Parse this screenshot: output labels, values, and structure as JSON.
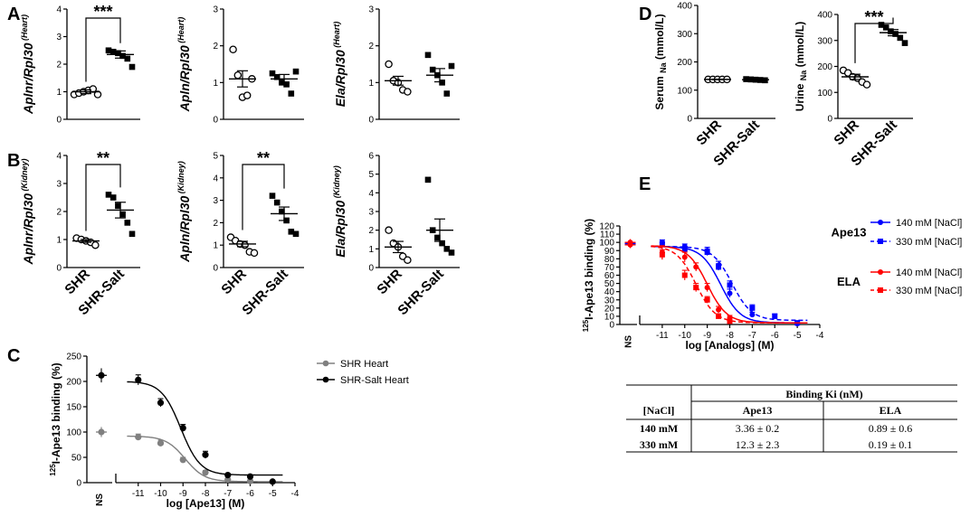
{
  "panels": {
    "A": "A",
    "B": "B",
    "C": "C",
    "D": "D",
    "E": "E"
  },
  "categories": [
    "SHR",
    "SHR-Salt"
  ],
  "chart_data": [
    {
      "id": "A1",
      "type": "scatter",
      "ylabel": "Aplnr/Rpl30",
      "ylabel_sup": "(Heart)",
      "ylim": [
        0,
        4
      ],
      "yticks": [
        "0",
        "1",
        "2",
        "3",
        "4"
      ],
      "sig": "***",
      "groups": [
        {
          "name": "SHR",
          "marker": "open-circle",
          "mean": 1.0,
          "sem": 0.07,
          "points": [
            0.9,
            0.95,
            1.0,
            1.05,
            1.1,
            0.9
          ]
        },
        {
          "name": "SHR-Salt",
          "marker": "filled-square",
          "mean": 2.35,
          "sem": 0.13,
          "points": [
            2.5,
            2.45,
            2.4,
            2.3,
            2.2,
            1.9
          ]
        }
      ]
    },
    {
      "id": "A2",
      "type": "scatter",
      "ylabel": "Apln/Rpl30",
      "ylabel_sup": "(Heart)",
      "ylim": [
        0,
        3
      ],
      "yticks": [
        "0",
        "1",
        "2",
        "3"
      ],
      "groups": [
        {
          "name": "SHR",
          "marker": "open-circle",
          "mean": 1.1,
          "sem": 0.22,
          "points": [
            1.9,
            1.2,
            0.6,
            0.65,
            1.1
          ]
        },
        {
          "name": "SHR-Salt",
          "marker": "filled-square",
          "mean": 1.1,
          "sem": 0.12,
          "points": [
            1.25,
            1.15,
            1.0,
            0.95,
            0.7,
            1.3
          ]
        }
      ]
    },
    {
      "id": "A3",
      "type": "scatter",
      "ylabel": "Ela/Rpl30",
      "ylabel_sup": "(Heart)",
      "ylim": [
        0,
        3
      ],
      "yticks": [
        "0",
        "1",
        "2",
        "3"
      ],
      "groups": [
        {
          "name": "SHR",
          "marker": "open-circle",
          "mean": 1.05,
          "sem": 0.12,
          "points": [
            1.5,
            1.05,
            1.0,
            0.8,
            0.75
          ]
        },
        {
          "name": "SHR-Salt",
          "marker": "filled-square",
          "mean": 1.2,
          "sem": 0.18,
          "points": [
            1.75,
            1.35,
            1.2,
            1.0,
            0.7,
            1.45
          ]
        }
      ]
    },
    {
      "id": "B1",
      "type": "scatter",
      "ylabel": "Aplnr/Rpl30",
      "ylabel_sup": "(Kidney)",
      "ylim": [
        0,
        4
      ],
      "yticks": [
        "0",
        "1",
        "2",
        "3",
        "4"
      ],
      "sig": "**",
      "groups": [
        {
          "name": "SHR",
          "marker": "open-circle",
          "mean": 0.95,
          "sem": 0.05,
          "points": [
            1.05,
            1.0,
            0.95,
            0.9,
            0.8
          ]
        },
        {
          "name": "SHR-Salt",
          "marker": "filled-square",
          "mean": 2.05,
          "sem": 0.28,
          "points": [
            2.6,
            2.5,
            2.2,
            1.9,
            1.6,
            1.2
          ]
        }
      ]
    },
    {
      "id": "B2",
      "type": "scatter",
      "ylabel": "Apln/Rpl30",
      "ylabel_sup": "(Kidney)",
      "ylim": [
        0,
        5
      ],
      "yticks": [
        "0",
        "1",
        "2",
        "3",
        "4",
        "5"
      ],
      "sig": "**",
      "groups": [
        {
          "name": "SHR",
          "marker": "open-circle",
          "mean": 1.05,
          "sem": 0.12,
          "points": [
            1.35,
            1.2,
            1.05,
            1.0,
            0.7,
            0.65
          ]
        },
        {
          "name": "SHR-Salt",
          "marker": "filled-square",
          "mean": 2.4,
          "sem": 0.3,
          "points": [
            3.2,
            2.9,
            2.5,
            2.1,
            1.6,
            1.5
          ]
        }
      ]
    },
    {
      "id": "B3",
      "type": "scatter",
      "ylabel": "Ela/Rpl30",
      "ylabel_sup": "(Kidney)",
      "ylim": [
        0,
        6
      ],
      "yticks": [
        "0",
        "1",
        "2",
        "3",
        "4",
        "5",
        "6"
      ],
      "groups": [
        {
          "name": "SHR",
          "marker": "open-circle",
          "mean": 1.1,
          "sem": 0.3,
          "points": [
            2.0,
            1.3,
            1.1,
            0.6,
            0.4
          ]
        },
        {
          "name": "SHR-Salt",
          "marker": "filled-square",
          "mean": 2.0,
          "sem": 0.6,
          "points": [
            4.7,
            2.0,
            1.6,
            1.3,
            1.0,
            0.8
          ]
        }
      ]
    },
    {
      "id": "D1",
      "type": "scatter",
      "ylabel": "Serum",
      "ylabel_sub": "Na",
      "ylabel_unit": "(mmol/L)",
      "ylim": [
        0,
        400
      ],
      "yticks": [
        "0",
        "100",
        "200",
        "300",
        "400"
      ],
      "groups": [
        {
          "name": "SHR",
          "marker": "open-circle",
          "mean": 138,
          "sem": 1,
          "points": [
            138,
            138,
            138,
            138,
            138
          ]
        },
        {
          "name": "SHR-Salt",
          "marker": "filled-square",
          "mean": 137,
          "sem": 1,
          "points": [
            139,
            138,
            137,
            136,
            135
          ]
        }
      ]
    },
    {
      "id": "D2",
      "type": "scatter",
      "ylabel": "Urine",
      "ylabel_sub": "Na",
      "ylabel_unit": "(mmol/L)",
      "ylim": [
        0,
        400
      ],
      "yticks": [
        "0",
        "100",
        "200",
        "300",
        "400"
      ],
      "sig": "***",
      "groups": [
        {
          "name": "SHR",
          "marker": "open-circle",
          "mean": 160,
          "sem": 10,
          "points": [
            185,
            175,
            160,
            155,
            140,
            130
          ]
        },
        {
          "name": "SHR-Salt",
          "marker": "filled-square",
          "mean": 330,
          "sem": 12,
          "points": [
            360,
            350,
            335,
            325,
            310,
            290
          ]
        }
      ]
    },
    {
      "id": "C",
      "type": "line",
      "xlabel": "log [Ape13] (M)",
      "ylabel": "I-Ape13 binding (%)",
      "ylabel_sup": "125",
      "ylim": [
        0,
        250
      ],
      "yticks": [
        "0",
        "50",
        "100",
        "150",
        "200",
        "250"
      ],
      "xlim": [
        -12,
        -4
      ],
      "xticks": [
        "-11",
        "-10",
        "-9",
        "-8",
        "-7",
        "-6",
        "-5",
        "-4"
      ],
      "ns_label": "NS",
      "series": [
        {
          "name": "SHR Heart",
          "color": "#808080",
          "top": 92,
          "bottom": 2,
          "logIC50": -8.9,
          "ns": {
            "y": 100,
            "err": 10
          },
          "x": [
            -11,
            -10,
            -9,
            -8,
            -7,
            -6,
            -5
          ],
          "y": [
            90,
            78,
            45,
            20,
            6,
            3,
            2
          ],
          "err": [
            6,
            6,
            5,
            4,
            2,
            1,
            1
          ]
        },
        {
          "name": "SHR-Salt Heart",
          "color": "#000000",
          "top": 200,
          "bottom": 15,
          "logIC50": -9.1,
          "ns": {
            "y": 212,
            "err": 14
          },
          "x": [
            -11,
            -10,
            -9,
            -8,
            -7,
            -6,
            -5
          ],
          "y": [
            203,
            158,
            108,
            55,
            15,
            12,
            2
          ],
          "err": [
            10,
            8,
            7,
            7,
            3,
            2,
            1
          ]
        }
      ]
    },
    {
      "id": "E",
      "type": "line",
      "xlabel": "log [Analogs] (M)",
      "ylabel": "I-Ape13 binding (%)",
      "ylabel_sup": "125",
      "ylim": [
        0,
        120
      ],
      "yticks": [
        "0",
        "10",
        "20",
        "30",
        "40",
        "50",
        "60",
        "70",
        "80",
        "90",
        "100",
        "110",
        "120"
      ],
      "xlim": [
        -12,
        -4
      ],
      "xticks": [
        "-11",
        "-10",
        "-9",
        "-8",
        "-7",
        "-6",
        "-5",
        "-4"
      ],
      "ns_label": "NS",
      "groups": [
        "Ape13",
        "ELA"
      ],
      "series": [
        {
          "name": "140 mM [NaCl]",
          "group": "Ape13",
          "color": "#0000ff",
          "dash": false,
          "top": 95,
          "bottom": 2,
          "logIC50": -8.4,
          "ns": {
            "y": 99,
            "err": 4
          },
          "x": [
            -11,
            -10,
            -9,
            -8.5,
            -8,
            -7,
            -5
          ],
          "y": [
            100,
            95,
            90,
            72,
            38,
            12,
            1
          ],
          "err": [
            3,
            3,
            4,
            5,
            5,
            3,
            1
          ]
        },
        {
          "name": "330 mM [NaCl]",
          "group": "Ape13",
          "color": "#0000ff",
          "dash": true,
          "top": 95,
          "bottom": 5,
          "logIC50": -7.9,
          "ns": {
            "y": 98,
            "err": 4
          },
          "x": [
            -11,
            -10,
            -9,
            -8.5,
            -8,
            -7,
            -6,
            -5
          ],
          "y": [
            98,
            92,
            88,
            70,
            48,
            20,
            10,
            2
          ],
          "err": [
            3,
            3,
            4,
            4,
            5,
            4,
            3,
            1
          ]
        },
        {
          "name": "140 mM [NaCl]",
          "group": "ELA",
          "color": "#ff0000",
          "dash": false,
          "top": 96,
          "bottom": 2,
          "logIC50": -9.0,
          "ns": {
            "y": 100,
            "err": 4
          },
          "x": [
            -11,
            -10,
            -9.5,
            -9,
            -8.5,
            -8
          ],
          "y": [
            88,
            82,
            70,
            45,
            18,
            8
          ],
          "err": [
            8,
            6,
            5,
            5,
            4,
            3
          ]
        },
        {
          "name": "330 mM [NaCl]",
          "group": "ELA",
          "color": "#ff0000",
          "dash": true,
          "top": 96,
          "bottom": 2,
          "logIC50": -9.5,
          "ns": {
            "y": 97,
            "err": 4
          },
          "x": [
            -11,
            -10,
            -9.5,
            -9,
            -8.5,
            -8
          ],
          "y": [
            85,
            60,
            45,
            30,
            10,
            4
          ],
          "err": [
            6,
            6,
            5,
            4,
            3,
            2
          ]
        }
      ]
    }
  ],
  "table": {
    "header_group": "Binding Ki (nM)",
    "col_headers": [
      "[NaCl]",
      "Ape13",
      "ELA"
    ],
    "rows": [
      [
        "140 mM",
        "3.36 ± 0.2",
        "0.89 ± 0.6"
      ],
      [
        "330 mM",
        "12.3 ±  2.3",
        "0.19 ±  0.1"
      ]
    ]
  }
}
